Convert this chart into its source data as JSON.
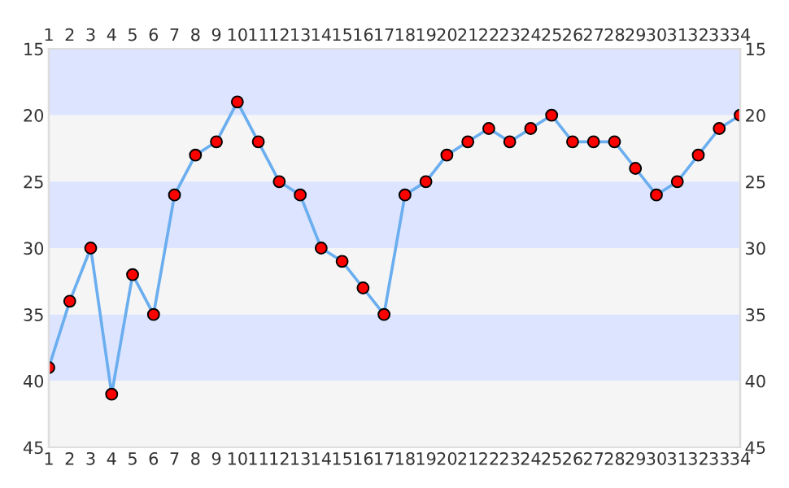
{
  "chart_data": {
    "type": "line",
    "marker": "circle",
    "line_style": "solid",
    "grid": false,
    "legend": false,
    "x": [
      1,
      2,
      3,
      4,
      5,
      6,
      7,
      8,
      9,
      10,
      11,
      12,
      13,
      14,
      15,
      16,
      17,
      18,
      19,
      20,
      21,
      22,
      23,
      24,
      25,
      26,
      27,
      28,
      29,
      30,
      31,
      32,
      33,
      34
    ],
    "series": [
      {
        "color": "#6aaef0",
        "values": [
          39,
          34,
          30,
          41,
          32,
          35,
          26,
          23,
          22,
          19,
          22,
          25,
          26,
          30,
          31,
          33,
          35,
          26,
          25,
          23,
          22,
          21,
          22,
          21,
          20,
          22,
          22,
          22,
          24,
          26,
          25,
          23,
          21,
          20
        ]
      }
    ],
    "xlim": [
      1,
      34
    ],
    "xticks": [
      1,
      2,
      3,
      4,
      5,
      6,
      7,
      8,
      9,
      10,
      11,
      12,
      13,
      14,
      15,
      16,
      17,
      18,
      19,
      20,
      21,
      22,
      23,
      24,
      25,
      26,
      27,
      28,
      29,
      30,
      31,
      32,
      33,
      34
    ],
    "x2lim": [
      1,
      34
    ],
    "x2ticks": [
      1,
      2,
      3,
      4,
      5,
      6,
      7,
      8,
      9,
      10,
      11,
      12,
      13,
      14,
      15,
      16,
      17,
      18,
      19,
      20,
      21,
      22,
      23,
      24,
      25,
      26,
      27,
      28,
      29,
      30,
      31,
      32,
      33,
      34
    ],
    "ylim": [
      45,
      15
    ],
    "yticks": [
      15,
      20,
      25,
      30,
      35,
      40,
      45
    ],
    "y2lim": [
      45,
      15
    ],
    "y2ticks": [
      15,
      20,
      25,
      30,
      35,
      40,
      45
    ],
    "bands": [
      {
        "axis": "y",
        "from": 15,
        "to": 20,
        "color": "#dde4ff"
      },
      {
        "axis": "y",
        "from": 20,
        "to": 25,
        "color": "#f5f5f5"
      },
      {
        "axis": "y",
        "from": 25,
        "to": 30,
        "color": "#dde4ff"
      },
      {
        "axis": "y",
        "from": 30,
        "to": 35,
        "color": "#f5f5f5"
      },
      {
        "axis": "y",
        "from": 35,
        "to": 40,
        "color": "#dde4ff"
      },
      {
        "axis": "y",
        "from": 40,
        "to": 45,
        "color": "#f5f5f5"
      }
    ]
  }
}
